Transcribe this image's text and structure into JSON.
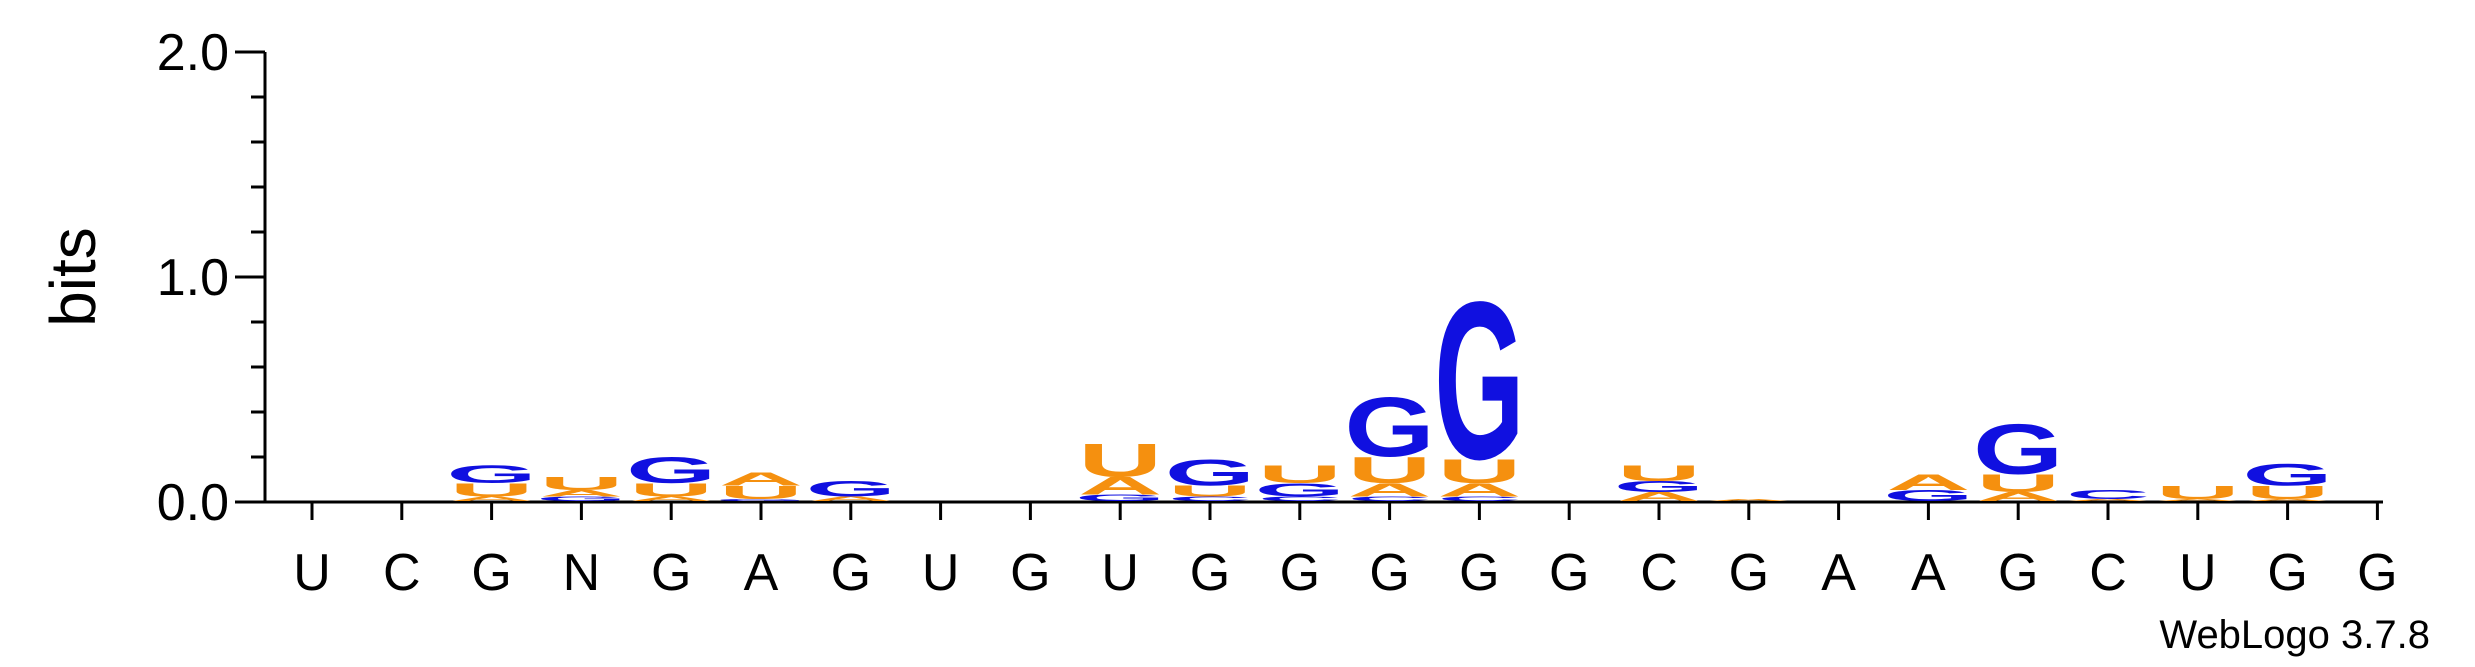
{
  "chart_data": {
    "type": "sequence-logo",
    "ylabel": "bits",
    "ylim": [
      0,
      2.0
    ],
    "yticks": [
      "0.0",
      "1.0",
      "2.0"
    ],
    "colors": {
      "G": "#1010e0",
      "U": "#f5900f",
      "A": "#f5900f",
      "C": "#1010e0"
    },
    "positions": [
      {
        "label": "U",
        "stack": []
      },
      {
        "label": "C",
        "stack": []
      },
      {
        "label": "G",
        "stack": [
          {
            "letter": "A",
            "height": 0.02
          },
          {
            "letter": "U",
            "height": 0.06
          },
          {
            "letter": "G",
            "height": 0.08
          }
        ]
      },
      {
        "label": "N",
        "stack": [
          {
            "letter": "G",
            "height": 0.02
          },
          {
            "letter": "A",
            "height": 0.03
          },
          {
            "letter": "U",
            "height": 0.06
          }
        ]
      },
      {
        "label": "G",
        "stack": [
          {
            "letter": "A",
            "height": 0.02
          },
          {
            "letter": "U",
            "height": 0.06
          },
          {
            "letter": "G",
            "height": 0.12
          }
        ]
      },
      {
        "label": "A",
        "stack": [
          {
            "letter": "G",
            "height": 0.01
          },
          {
            "letter": "U",
            "height": 0.06
          },
          {
            "letter": "A",
            "height": 0.06
          }
        ]
      },
      {
        "label": "G",
        "stack": [
          {
            "letter": "A",
            "height": 0.02
          },
          {
            "letter": "G",
            "height": 0.07
          }
        ]
      },
      {
        "label": "U",
        "stack": []
      },
      {
        "label": "G",
        "stack": []
      },
      {
        "label": "U",
        "stack": [
          {
            "letter": "G",
            "height": 0.03
          },
          {
            "letter": "A",
            "height": 0.08
          },
          {
            "letter": "U",
            "height": 0.15
          }
        ]
      },
      {
        "label": "G",
        "stack": [
          {
            "letter": "C",
            "height": 0.02
          },
          {
            "letter": "U",
            "height": 0.05
          },
          {
            "letter": "G",
            "height": 0.12
          }
        ]
      },
      {
        "label": "G",
        "stack": [
          {
            "letter": "C",
            "height": 0.02
          },
          {
            "letter": "G",
            "height": 0.06
          },
          {
            "letter": "U",
            "height": 0.08
          }
        ]
      },
      {
        "label": "G",
        "stack": [
          {
            "letter": "C",
            "height": 0.02
          },
          {
            "letter": "A",
            "height": 0.06
          },
          {
            "letter": "U",
            "height": 0.12
          },
          {
            "letter": "G",
            "height": 0.27
          }
        ]
      },
      {
        "label": "G",
        "stack": [
          {
            "letter": "C",
            "height": 0.02
          },
          {
            "letter": "A",
            "height": 0.06
          },
          {
            "letter": "U",
            "height": 0.11
          },
          {
            "letter": "G",
            "height": 0.72
          }
        ]
      },
      {
        "label": "G",
        "stack": []
      },
      {
        "label": "C",
        "stack": [
          {
            "letter": "A",
            "height": 0.04
          },
          {
            "letter": "G",
            "height": 0.05
          },
          {
            "letter": "U",
            "height": 0.07
          }
        ]
      },
      {
        "label": "G",
        "stack": [
          {
            "letter": "A",
            "height": 0.01
          }
        ]
      },
      {
        "label": "A",
        "stack": []
      },
      {
        "label": "A",
        "stack": [
          {
            "letter": "G",
            "height": 0.05
          },
          {
            "letter": "A",
            "height": 0.07
          }
        ]
      },
      {
        "label": "G",
        "stack": [
          {
            "letter": "A",
            "height": 0.04
          },
          {
            "letter": "U",
            "height": 0.08
          },
          {
            "letter": "G",
            "height": 0.23
          }
        ]
      },
      {
        "label": "C",
        "stack": [
          {
            "letter": "A",
            "height": 0.01
          },
          {
            "letter": "C",
            "height": 0.04
          }
        ]
      },
      {
        "label": "U",
        "stack": [
          {
            "letter": "A",
            "height": 0.01
          },
          {
            "letter": "U",
            "height": 0.06
          }
        ]
      },
      {
        "label": "G",
        "stack": [
          {
            "letter": "A",
            "height": 0.01
          },
          {
            "letter": "U",
            "height": 0.06
          },
          {
            "letter": "G",
            "height": 0.1
          }
        ]
      },
      {
        "label": "G",
        "stack": []
      }
    ]
  },
  "credit": "WebLogo 3.7.8"
}
